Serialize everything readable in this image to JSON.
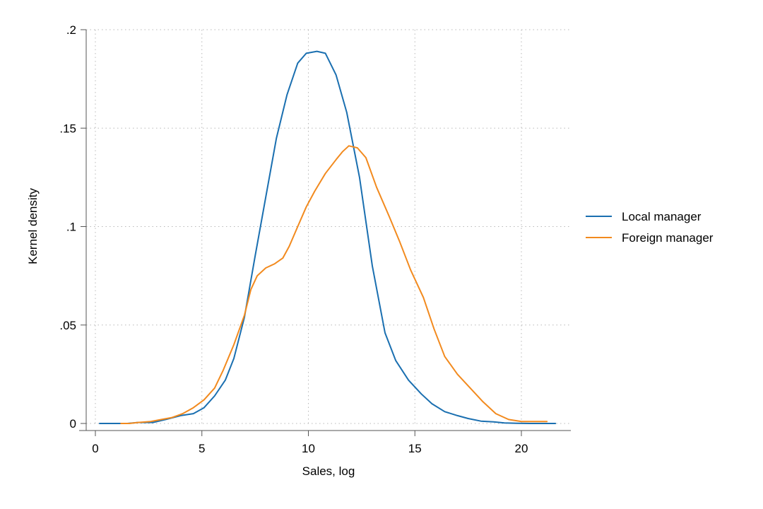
{
  "chart_data": {
    "type": "line",
    "xlabel": "Sales, log",
    "ylabel": "Kernel density",
    "xlim": [
      0,
      22
    ],
    "ylim": [
      0,
      0.2
    ],
    "xticks": [
      0,
      5,
      10,
      15,
      20
    ],
    "xtick_labels": [
      "0",
      "5",
      "10",
      "15",
      "20"
    ],
    "yticks": [
      0,
      0.05,
      0.1,
      0.15,
      0.2
    ],
    "ytick_labels": [
      "0",
      ".05",
      ".1",
      ".15",
      ".2"
    ],
    "grid": true,
    "legend_position": "right",
    "series": [
      {
        "name": "Local manager",
        "color": "#1a6fb0",
        "x": [
          0.2,
          0.8,
          1.5,
          2.0,
          2.7,
          3.3,
          4.0,
          4.6,
          5.1,
          5.6,
          6.1,
          6.5,
          7.0,
          7.5,
          8.0,
          8.5,
          9.0,
          9.5,
          9.9,
          10.4,
          10.8,
          11.3,
          11.8,
          12.4,
          13.0,
          13.6,
          14.1,
          14.7,
          15.3,
          15.8,
          16.4,
          17.0,
          17.5,
          18.1,
          18.7,
          19.2,
          19.8,
          20.4,
          21.0,
          21.6
        ],
        "y": [
          0.0,
          0.0,
          0.0,
          0.0005,
          0.0005,
          0.002,
          0.004,
          0.005,
          0.008,
          0.014,
          0.022,
          0.033,
          0.054,
          0.085,
          0.115,
          0.145,
          0.167,
          0.183,
          0.188,
          0.189,
          0.188,
          0.177,
          0.158,
          0.125,
          0.08,
          0.046,
          0.032,
          0.022,
          0.015,
          0.01,
          0.006,
          0.004,
          0.0025,
          0.0012,
          0.0008,
          0.0003,
          0.0001,
          0.0,
          0.0,
          0.0
        ]
      },
      {
        "name": "Foreign manager",
        "color": "#f28a1e",
        "x": [
          1.2,
          1.6,
          2.0,
          2.6,
          3.1,
          3.6,
          4.1,
          4.6,
          5.1,
          5.6,
          6.0,
          6.5,
          7.0,
          7.3,
          7.6,
          8.0,
          8.4,
          8.8,
          9.1,
          9.5,
          9.9,
          10.3,
          10.8,
          11.3,
          11.6,
          11.9,
          12.3,
          12.7,
          13.2,
          13.8,
          14.3,
          14.8,
          15.4,
          15.9,
          16.4,
          17.0,
          17.6,
          18.2,
          18.8,
          19.4,
          20.0,
          20.6,
          21.2
        ],
        "y": [
          0.0,
          0.0,
          0.0005,
          0.001,
          0.002,
          0.003,
          0.005,
          0.008,
          0.012,
          0.018,
          0.027,
          0.04,
          0.055,
          0.068,
          0.075,
          0.079,
          0.081,
          0.084,
          0.09,
          0.1,
          0.11,
          0.118,
          0.127,
          0.134,
          0.138,
          0.141,
          0.14,
          0.135,
          0.12,
          0.105,
          0.092,
          0.078,
          0.064,
          0.048,
          0.034,
          0.025,
          0.018,
          0.011,
          0.005,
          0.002,
          0.001,
          0.001,
          0.001
        ]
      }
    ]
  }
}
